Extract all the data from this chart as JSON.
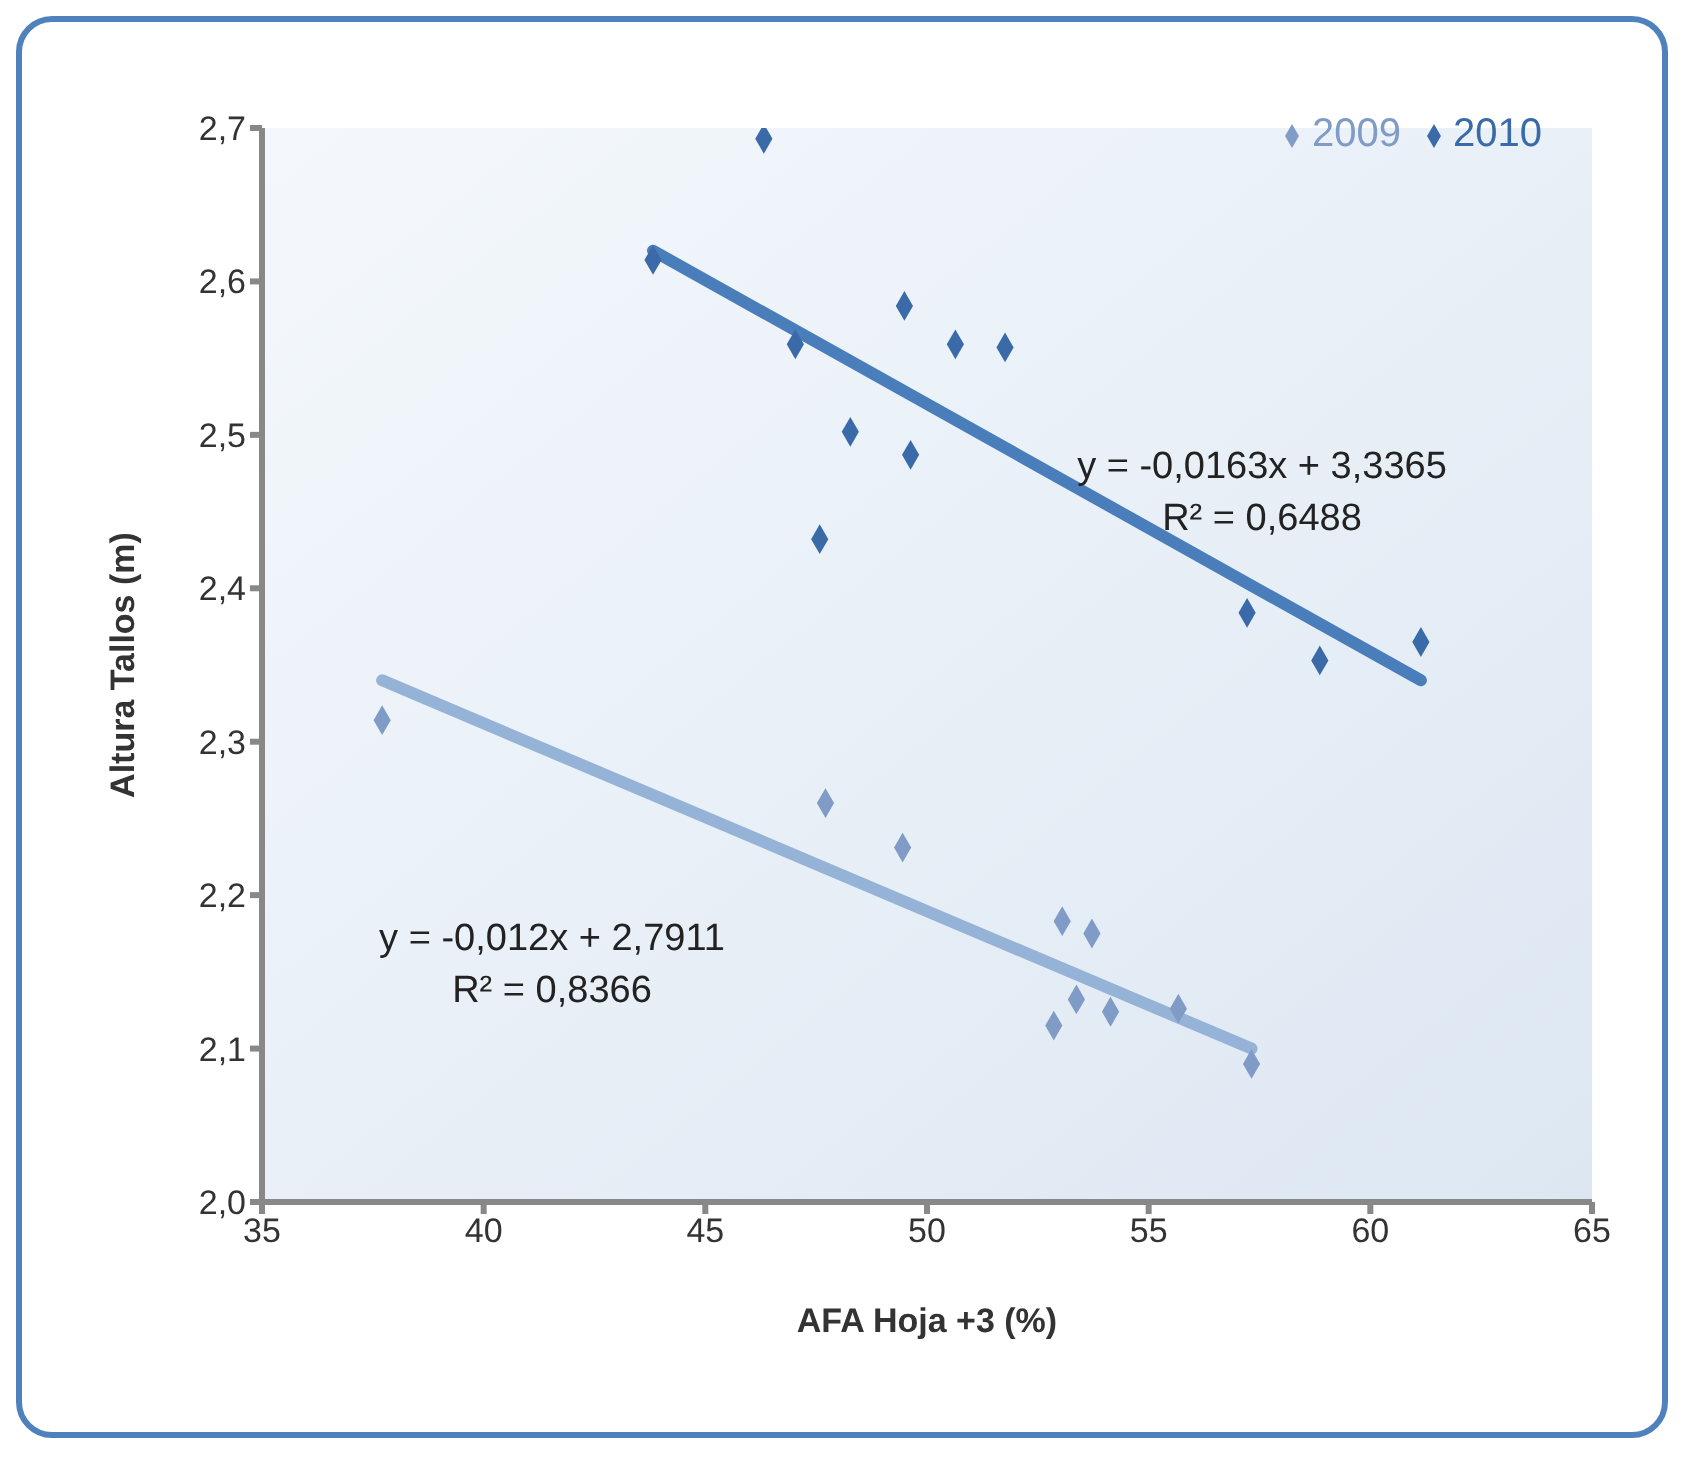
{
  "chart_data": {
    "type": "scatter",
    "xlabel": "AFA Hoja +3 (%)",
    "ylabel": "Altura Tallos (m)",
    "xlim": [
      35,
      65
    ],
    "xticks": [
      35,
      40,
      45,
      50,
      55,
      60,
      65
    ],
    "ylim": [
      2,
      2.7
    ],
    "yticks": [
      {
        "value": 2,
        "label": "2,0"
      },
      {
        "value": 2.1,
        "label": "2,1"
      },
      {
        "value": 2.2,
        "label": "2,2"
      },
      {
        "value": 2.3,
        "label": "2,3"
      },
      {
        "value": 2.4,
        "label": "2,4"
      },
      {
        "value": 2.5,
        "label": "2,5"
      },
      {
        "value": 2.6,
        "label": "2,6"
      },
      {
        "value": 2.7,
        "label": "2,7"
      }
    ],
    "grid": false,
    "legend": "top right",
    "series": [
      {
        "name": "2009",
        "color": "#7f9bc6",
        "marker": "diamond",
        "x": [
          37.71,
          47.71,
          49.45,
          53.05,
          53.72,
          53.37,
          52.86,
          54.14,
          55.67,
          57.32
        ],
        "values": [
          2.314,
          2.26,
          2.231,
          2.183,
          2.175,
          2.132,
          2.115,
          2.124,
          2.126,
          2.09
        ]
      },
      {
        "name": "2010",
        "color": "#3a6aa8",
        "marker": "diamond",
        "x": [
          46.32,
          43.82,
          47.03,
          49.49,
          50.64,
          51.76,
          48.27,
          49.63,
          47.58,
          57.22,
          58.86,
          61.14
        ],
        "values": [
          2.693,
          2.614,
          2.559,
          2.584,
          2.559,
          2.557,
          2.502,
          2.487,
          2.432,
          2.384,
          2.353,
          2.365
        ]
      },
      {
        "type": "line",
        "color": "#95b3d7",
        "x": [
          37.71,
          57.32
        ],
        "values": [
          2.34,
          2.1
        ]
      },
      {
        "type": "line",
        "color": "#4a7ebb",
        "x": [
          43.82,
          61.14
        ],
        "values": [
          2.62,
          2.34
        ]
      }
    ],
    "annotations": [
      "y = -0,0163x + 3,3365",
      "R² = 0,6488",
      "y = -0,012x + 2,7911",
      "R² = 0,8366"
    ]
  }
}
